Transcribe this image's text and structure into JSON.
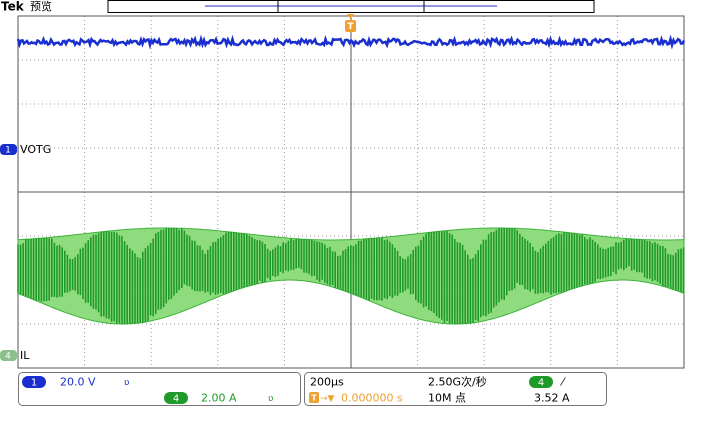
{
  "header": {
    "brand": "Tek",
    "mode": "预览"
  },
  "channels": [
    {
      "marker": "1",
      "label": "VOTG"
    },
    {
      "marker": "4",
      "label": "IL"
    }
  ],
  "trigger_marker": "T",
  "status": {
    "ch1_marker": "1",
    "ch1_scale": "20.0 V",
    "ch4_marker": "4",
    "ch4_scale": "2.00 A",
    "timebase": "200µs",
    "sample_rate": "2.50G次/秒",
    "trigger_marker": "T",
    "trigger_position": "0.000000 s",
    "record_length": "10M 点",
    "trigger_channel": "4",
    "trigger_level": "3.52 A"
  }
}
